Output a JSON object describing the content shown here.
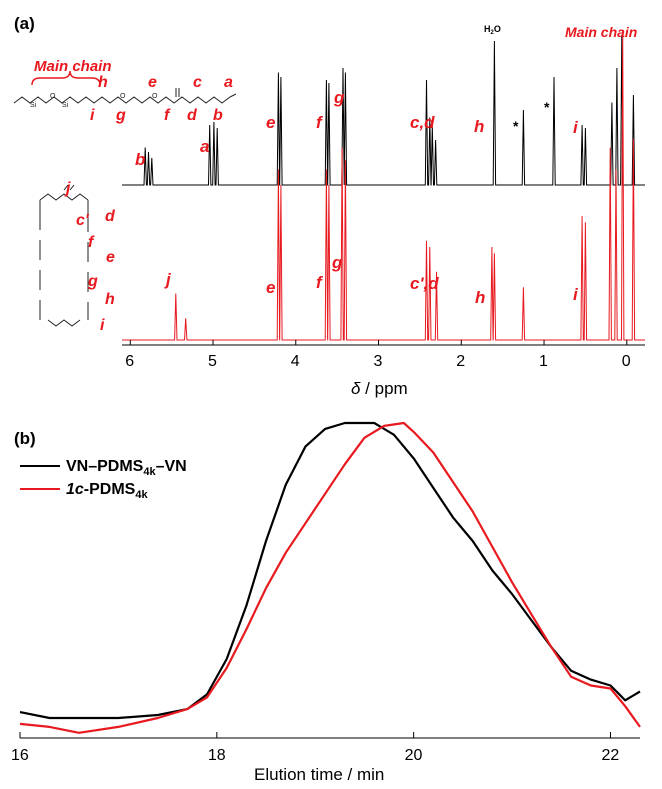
{
  "panel_a": {
    "label": "(a)",
    "main_chain_label": "Main chain",
    "main_chain_label_top": "Main chain",
    "water_label": "H2O",
    "star": "*",
    "top_letters": [
      "b",
      "a",
      "e",
      "f",
      "g",
      "c,d",
      "h",
      "i"
    ],
    "bottom_letters": [
      "j",
      "e",
      "f",
      "g",
      "c',d",
      "h",
      "i"
    ],
    "struct_top_letters": [
      "h",
      "e",
      "c",
      "a",
      "i",
      "g",
      "f",
      "d",
      "b"
    ],
    "struct_bottom_letters": [
      "j",
      "c'",
      "d",
      "e",
      "f",
      "g",
      "h",
      "i"
    ],
    "x_ticks": [
      "6",
      "5",
      "4",
      "3",
      "2",
      "1",
      "0"
    ],
    "xlabel_sym": "δ",
    "xlabel_unit": " / ppm"
  },
  "panel_b": {
    "label": "(b)",
    "legend": [
      {
        "name": "VN–PDMS",
        "sub": "4k",
        "tail": "–VN",
        "color": "#000000"
      },
      {
        "name": "1c",
        "tail": "-PDMS",
        "sub": "4k",
        "color": "#e8191f"
      }
    ],
    "x_ticks": [
      "16",
      "18",
      "20",
      "22"
    ],
    "xlabel": "Elution time / min"
  },
  "colors": {
    "red": "#e8191f",
    "black": "#000000"
  },
  "chart_data": [
    {
      "type": "line",
      "title": "",
      "xlabel": "δ / ppm",
      "xlim": [
        6.1,
        -0.22
      ],
      "axis_reversed": true,
      "series": [
        {
          "name": "top spectrum",
          "color": "#000000",
          "peaks": [
            [
              5.82,
              0.25
            ],
            [
              5.78,
              0.22
            ],
            [
              5.74,
              0.18
            ],
            [
              5.04,
              0.4
            ],
            [
              4.99,
              0.42
            ],
            [
              4.95,
              0.38
            ],
            [
              4.21,
              0.75
            ],
            [
              4.18,
              0.72
            ],
            [
              3.63,
              0.7
            ],
            [
              3.6,
              0.68
            ],
            [
              3.43,
              0.78
            ],
            [
              3.4,
              0.75
            ],
            [
              2.42,
              0.7
            ],
            [
              2.38,
              0.45
            ],
            [
              2.35,
              0.4
            ],
            [
              2.31,
              0.3
            ],
            [
              1.6,
              0.96
            ],
            [
              1.25,
              0.5
            ],
            [
              0.88,
              0.72
            ],
            [
              0.54,
              0.4
            ],
            [
              0.5,
              0.38
            ],
            [
              0.18,
              0.55
            ],
            [
              0.12,
              0.78
            ],
            [
              0.06,
              1.0
            ],
            [
              -0.08,
              0.6
            ]
          ]
        },
        {
          "name": "bottom spectrum",
          "color": "#e8191f",
          "peaks": [
            [
              5.45,
              0.15
            ],
            [
              5.33,
              0.07
            ],
            [
              4.21,
              0.55
            ],
            [
              4.18,
              0.5
            ],
            [
              3.63,
              0.55
            ],
            [
              3.6,
              0.5
            ],
            [
              3.44,
              0.62
            ],
            [
              3.4,
              0.58
            ],
            [
              2.42,
              0.32
            ],
            [
              2.38,
              0.3
            ],
            [
              2.3,
              0.22
            ],
            [
              1.63,
              0.3
            ],
            [
              1.6,
              0.28
            ],
            [
              1.25,
              0.17
            ],
            [
              0.54,
              0.4
            ],
            [
              0.5,
              0.38
            ],
            [
              0.2,
              0.62
            ],
            [
              0.13,
              0.55
            ],
            [
              0.05,
              1.0
            ],
            [
              -0.08,
              0.65
            ]
          ]
        }
      ]
    },
    {
      "type": "line",
      "title": "",
      "xlabel": "Elution time / min",
      "xlim": [
        16,
        22.3
      ],
      "series": [
        {
          "name": "VN–PDMS4k–VN",
          "color": "#000000",
          "x": [
            16,
            16.3,
            16.6,
            17,
            17.4,
            17.7,
            17.9,
            18.1,
            18.3,
            18.5,
            18.7,
            18.9,
            19.1,
            19.3,
            19.5,
            19.6,
            19.8,
            20.0,
            20.2,
            20.4,
            20.6,
            20.8,
            21.0,
            21.2,
            21.4,
            21.6,
            21.8,
            22.0,
            22.15,
            22.3
          ],
          "y": [
            0.02,
            0.0,
            0.0,
            0.0,
            0.01,
            0.03,
            0.08,
            0.2,
            0.38,
            0.6,
            0.79,
            0.92,
            0.98,
            1.0,
            1.0,
            1.0,
            0.96,
            0.88,
            0.78,
            0.68,
            0.6,
            0.5,
            0.42,
            0.33,
            0.24,
            0.16,
            0.13,
            0.11,
            0.06,
            0.09
          ]
        },
        {
          "name": "1c-PDMS4k",
          "color": "#e8191f",
          "x": [
            16,
            16.3,
            16.6,
            17,
            17.4,
            17.7,
            17.9,
            18.1,
            18.3,
            18.5,
            18.7,
            18.9,
            19.1,
            19.3,
            19.5,
            19.7,
            19.9,
            20.0,
            20.2,
            20.4,
            20.6,
            20.8,
            21.0,
            21.2,
            21.4,
            21.6,
            21.8,
            22.0,
            22.15,
            22.3
          ],
          "y": [
            -0.02,
            -0.03,
            -0.05,
            -0.03,
            0.0,
            0.03,
            0.07,
            0.17,
            0.3,
            0.44,
            0.56,
            0.66,
            0.76,
            0.86,
            0.95,
            0.99,
            1.0,
            0.97,
            0.9,
            0.8,
            0.7,
            0.58,
            0.46,
            0.35,
            0.24,
            0.14,
            0.11,
            0.1,
            0.04,
            -0.03
          ]
        }
      ]
    }
  ]
}
